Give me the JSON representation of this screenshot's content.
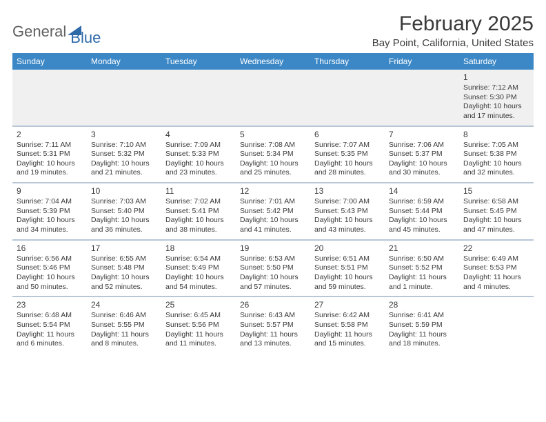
{
  "logo": {
    "text1": "General",
    "text2": "Blue"
  },
  "title": "February 2025",
  "location": "Bay Point, California, United States",
  "colors": {
    "header_bg": "#3c88c6",
    "header_fg": "#ffffff",
    "separator": "#b8c6d6",
    "empty_bg": "#f0f0f0",
    "text": "#3a3a3a",
    "logo_gray": "#606060",
    "logo_blue": "#2f6aa8"
  },
  "weekdays": [
    "Sunday",
    "Monday",
    "Tuesday",
    "Wednesday",
    "Thursday",
    "Friday",
    "Saturday"
  ],
  "weeks": [
    [
      null,
      null,
      null,
      null,
      null,
      null,
      {
        "day": "1",
        "sunrise": "Sunrise: 7:12 AM",
        "sunset": "Sunset: 5:30 PM",
        "daylight": "Daylight: 10 hours and 17 minutes."
      }
    ],
    [
      {
        "day": "2",
        "sunrise": "Sunrise: 7:11 AM",
        "sunset": "Sunset: 5:31 PM",
        "daylight": "Daylight: 10 hours and 19 minutes."
      },
      {
        "day": "3",
        "sunrise": "Sunrise: 7:10 AM",
        "sunset": "Sunset: 5:32 PM",
        "daylight": "Daylight: 10 hours and 21 minutes."
      },
      {
        "day": "4",
        "sunrise": "Sunrise: 7:09 AM",
        "sunset": "Sunset: 5:33 PM",
        "daylight": "Daylight: 10 hours and 23 minutes."
      },
      {
        "day": "5",
        "sunrise": "Sunrise: 7:08 AM",
        "sunset": "Sunset: 5:34 PM",
        "daylight": "Daylight: 10 hours and 25 minutes."
      },
      {
        "day": "6",
        "sunrise": "Sunrise: 7:07 AM",
        "sunset": "Sunset: 5:35 PM",
        "daylight": "Daylight: 10 hours and 28 minutes."
      },
      {
        "day": "7",
        "sunrise": "Sunrise: 7:06 AM",
        "sunset": "Sunset: 5:37 PM",
        "daylight": "Daylight: 10 hours and 30 minutes."
      },
      {
        "day": "8",
        "sunrise": "Sunrise: 7:05 AM",
        "sunset": "Sunset: 5:38 PM",
        "daylight": "Daylight: 10 hours and 32 minutes."
      }
    ],
    [
      {
        "day": "9",
        "sunrise": "Sunrise: 7:04 AM",
        "sunset": "Sunset: 5:39 PM",
        "daylight": "Daylight: 10 hours and 34 minutes."
      },
      {
        "day": "10",
        "sunrise": "Sunrise: 7:03 AM",
        "sunset": "Sunset: 5:40 PM",
        "daylight": "Daylight: 10 hours and 36 minutes."
      },
      {
        "day": "11",
        "sunrise": "Sunrise: 7:02 AM",
        "sunset": "Sunset: 5:41 PM",
        "daylight": "Daylight: 10 hours and 38 minutes."
      },
      {
        "day": "12",
        "sunrise": "Sunrise: 7:01 AM",
        "sunset": "Sunset: 5:42 PM",
        "daylight": "Daylight: 10 hours and 41 minutes."
      },
      {
        "day": "13",
        "sunrise": "Sunrise: 7:00 AM",
        "sunset": "Sunset: 5:43 PM",
        "daylight": "Daylight: 10 hours and 43 minutes."
      },
      {
        "day": "14",
        "sunrise": "Sunrise: 6:59 AM",
        "sunset": "Sunset: 5:44 PM",
        "daylight": "Daylight: 10 hours and 45 minutes."
      },
      {
        "day": "15",
        "sunrise": "Sunrise: 6:58 AM",
        "sunset": "Sunset: 5:45 PM",
        "daylight": "Daylight: 10 hours and 47 minutes."
      }
    ],
    [
      {
        "day": "16",
        "sunrise": "Sunrise: 6:56 AM",
        "sunset": "Sunset: 5:46 PM",
        "daylight": "Daylight: 10 hours and 50 minutes."
      },
      {
        "day": "17",
        "sunrise": "Sunrise: 6:55 AM",
        "sunset": "Sunset: 5:48 PM",
        "daylight": "Daylight: 10 hours and 52 minutes."
      },
      {
        "day": "18",
        "sunrise": "Sunrise: 6:54 AM",
        "sunset": "Sunset: 5:49 PM",
        "daylight": "Daylight: 10 hours and 54 minutes."
      },
      {
        "day": "19",
        "sunrise": "Sunrise: 6:53 AM",
        "sunset": "Sunset: 5:50 PM",
        "daylight": "Daylight: 10 hours and 57 minutes."
      },
      {
        "day": "20",
        "sunrise": "Sunrise: 6:51 AM",
        "sunset": "Sunset: 5:51 PM",
        "daylight": "Daylight: 10 hours and 59 minutes."
      },
      {
        "day": "21",
        "sunrise": "Sunrise: 6:50 AM",
        "sunset": "Sunset: 5:52 PM",
        "daylight": "Daylight: 11 hours and 1 minute."
      },
      {
        "day": "22",
        "sunrise": "Sunrise: 6:49 AM",
        "sunset": "Sunset: 5:53 PM",
        "daylight": "Daylight: 11 hours and 4 minutes."
      }
    ],
    [
      {
        "day": "23",
        "sunrise": "Sunrise: 6:48 AM",
        "sunset": "Sunset: 5:54 PM",
        "daylight": "Daylight: 11 hours and 6 minutes."
      },
      {
        "day": "24",
        "sunrise": "Sunrise: 6:46 AM",
        "sunset": "Sunset: 5:55 PM",
        "daylight": "Daylight: 11 hours and 8 minutes."
      },
      {
        "day": "25",
        "sunrise": "Sunrise: 6:45 AM",
        "sunset": "Sunset: 5:56 PM",
        "daylight": "Daylight: 11 hours and 11 minutes."
      },
      {
        "day": "26",
        "sunrise": "Sunrise: 6:43 AM",
        "sunset": "Sunset: 5:57 PM",
        "daylight": "Daylight: 11 hours and 13 minutes."
      },
      {
        "day": "27",
        "sunrise": "Sunrise: 6:42 AM",
        "sunset": "Sunset: 5:58 PM",
        "daylight": "Daylight: 11 hours and 15 minutes."
      },
      {
        "day": "28",
        "sunrise": "Sunrise: 6:41 AM",
        "sunset": "Sunset: 5:59 PM",
        "daylight": "Daylight: 11 hours and 18 minutes."
      },
      null
    ]
  ]
}
